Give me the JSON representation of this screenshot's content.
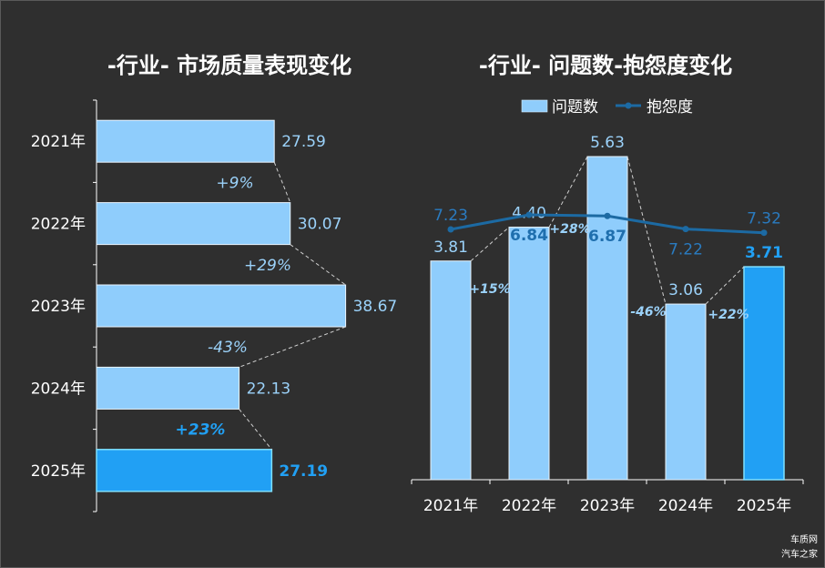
{
  "chart_data": [
    {
      "type": "bar",
      "orientation": "horizontal",
      "title": "-行业-  市场质量表现变化",
      "categories": [
        "2021年",
        "2022年",
        "2023年",
        "2024年",
        "2025年"
      ],
      "values": [
        27.59,
        30.07,
        38.67,
        22.13,
        27.19
      ],
      "value_labels": [
        "27.59",
        "30.07",
        "38.67",
        "22.13",
        "27.19"
      ],
      "changes": [
        "+9%",
        "+29%",
        "-43%",
        "+23%"
      ],
      "highlight_index": 4
    },
    {
      "type": "bar",
      "title": "-行业- 问题数-抱怨度变化",
      "categories": [
        "2021年",
        "2022年",
        "2023年",
        "2024年",
        "2025年"
      ],
      "legend": {
        "position": "top",
        "entries": [
          "问题数",
          "抱怨度"
        ]
      },
      "series": [
        {
          "name": "问题数",
          "type": "bar",
          "values": [
            3.81,
            4.4,
            5.63,
            3.06,
            3.71
          ],
          "labels": [
            "3.81",
            "4.40",
            "5.63",
            "3.06",
            "3.71"
          ]
        },
        {
          "name": "抱怨度",
          "type": "line",
          "values": [
            7.23,
            6.84,
            6.87,
            7.22,
            7.32
          ],
          "labels": [
            "7.23",
            "6.84",
            "6.87",
            "7.22",
            "7.32"
          ]
        }
      ],
      "changes": [
        "+15%",
        "+28%",
        "-46%",
        "+22%"
      ],
      "highlight_index": 4
    }
  ],
  "watermark": [
    "车质网",
    "汽车之家"
  ],
  "colors": {
    "background": "#2f2f2f",
    "bar": "#8fcdfc",
    "highlight": "#21a0f4",
    "line": "#1c6aa3",
    "text": "#ffffff",
    "label": "#9bd2fa"
  }
}
